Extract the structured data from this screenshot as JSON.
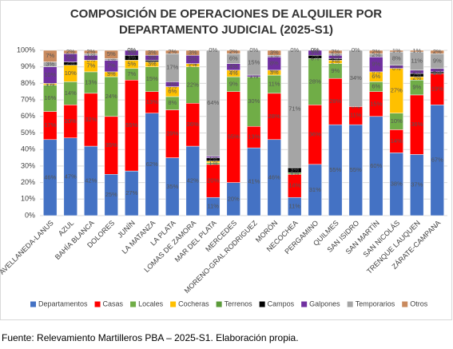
{
  "chart_data": {
    "type": "stacked_bar_percent",
    "title": "COMPOSICIÓN DE OPERACIONES DE ALQUILER POR",
    "subtitle": "DEPARTAMENTO JUDICIAL (2025-S1)",
    "footnote": "Fuente: Relevamiento Martilleros PBA – 2025-S1. Elaboración propia.",
    "categories": [
      "AVELLANEDA-LANUS",
      "AZUL",
      "BAHÍA BLANCA",
      "DOLORES",
      "JUNÍN",
      "LA MATANZA",
      "LA PLATA",
      "LOMAS DE ZAMORA",
      "MAR DEL PLATA",
      "MERCEDES",
      "MORENO-GRAL.RODRIGUEZ",
      "MORÓN",
      "NECOCHEA",
      "PERGAMINO",
      "QUILMES",
      "SAN ISIDRO",
      "SAN MARTÍN",
      "SAN NICOLÁS",
      "TRENQUE LAUQUEN",
      "ZÁRATE-CAMPANA"
    ],
    "series": [
      {
        "name": "Departamentos",
        "color": "#4472c4",
        "values": [
          46,
          47,
          42,
          25,
          27,
          62,
          35,
          42,
          11,
          20,
          41,
          46,
          11,
          31,
          55,
          55,
          60,
          38,
          37,
          67
        ],
        "value_labels": [
          "46%",
          "47%",
          "42%",
          "25%",
          "27%",
          "62%",
          "35%",
          "42%",
          "11%",
          "20%",
          "41%",
          "46%",
          "11%",
          "31%",
          "55%",
          "55%",
          "60%",
          "38%",
          "37%",
          "67%"
        ]
      },
      {
        "name": "Casas",
        "color": "#ff0000",
        "values": [
          17,
          20,
          32,
          35,
          55,
          13,
          29,
          26,
          20,
          55,
          13,
          28,
          14,
          36,
          28,
          11,
          15,
          14,
          36,
          19
        ],
        "value_labels": [
          "17%",
          "20%",
          "32%",
          "35%",
          "55%",
          "13%",
          "29%",
          "26%",
          "20%",
          "55%",
          "13%",
          "28%",
          "14%",
          "36%",
          "28%",
          "11%",
          "15%",
          "14%",
          "36%",
          "19%"
        ]
      },
      {
        "name": "Locales",
        "color": "#70ad47",
        "values": [
          16,
          14,
          13,
          24,
          7,
          15,
          8,
          22,
          1,
          9,
          30,
          11,
          1,
          28,
          9,
          0,
          6,
          10,
          9,
          0
        ],
        "value_labels": [
          "16%",
          "14%",
          "13%",
          "24%",
          "7%",
          "15%",
          "8%",
          "22%",
          "1%",
          "9%",
          "30%",
          "11%",
          "1%",
          "28%",
          "9%",
          "0%",
          "6%",
          "10%",
          "9%",
          "0%"
        ]
      },
      {
        "name": "Cocheras",
        "color": "#ffc000",
        "values": [
          1,
          10,
          7,
          3,
          5,
          3,
          6,
          2,
          1,
          4,
          0,
          3,
          0,
          0,
          2,
          0,
          6,
          27,
          2,
          0
        ],
        "value_labels": [
          "1%",
          "10%",
          "7%",
          "3%",
          "5%",
          "3%",
          "6%",
          "2%",
          "1%",
          "4%",
          "0%",
          "3%",
          "0%",
          "0%",
          "2%",
          "0%",
          "6%",
          "27%",
          "2%",
          "0%"
        ]
      },
      {
        "name": "Terrenos",
        "color": "#5b9b3a",
        "values": [
          0,
          0,
          0,
          0,
          0,
          0,
          0,
          0,
          0,
          0,
          0,
          0,
          0,
          0,
          0,
          0,
          0,
          0,
          0,
          0
        ]
      },
      {
        "name": "Campos",
        "color": "#000000",
        "values": [
          0,
          2,
          0,
          0,
          3,
          1,
          0,
          0,
          2,
          0,
          0,
          0,
          3,
          2,
          1,
          0,
          0,
          0,
          2,
          1
        ],
        "value_labels": [
          "0%",
          "2%",
          "0%",
          "0%",
          "3%",
          "1%",
          "0%",
          "0%",
          "2%",
          "0%",
          "0%",
          "0%",
          "3%",
          "2%",
          "1%",
          "0%",
          "0%",
          "0%",
          "2%",
          "1%"
        ]
      },
      {
        "name": "Galpones",
        "color": "#7030a0",
        "values": [
          10,
          5,
          3,
          7,
          3,
          3,
          3,
          5,
          1,
          4,
          1,
          8,
          0,
          3,
          2,
          0,
          9,
          2,
          2,
          2
        ],
        "value_labels": [
          "10%",
          "5%",
          "3%",
          "7%",
          "3%",
          "3%",
          "3%",
          "5%",
          "1%",
          "4%",
          "1%",
          "8%",
          "0%",
          "3%",
          "2%",
          "0%",
          "9%",
          "2%",
          "2%",
          "2%"
        ]
      },
      {
        "name": "Temporarios",
        "color": "#a5a5a5",
        "values": [
          3,
          0,
          1,
          1,
          0,
          0,
          17,
          0,
          64,
          6,
          15,
          1,
          71,
          0,
          1,
          34,
          2,
          8,
          11,
          9
        ],
        "value_labels": [
          "3%",
          "0%",
          "1%",
          "1%",
          "0%",
          "0%",
          "17%",
          "0%",
          "64%",
          "6%",
          "15%",
          "1%",
          "71%",
          "0%",
          "1%",
          "34%",
          "2%",
          "8%",
          "11%",
          "9%"
        ]
      },
      {
        "name": "Otros",
        "color": "#c98a5e",
        "values": [
          7,
          2,
          2,
          5,
          0,
          3,
          2,
          3,
          0,
          2,
          0,
          3,
          0,
          0,
          2,
          0,
          2,
          1,
          1,
          2
        ],
        "value_labels": [
          "7%",
          "2%",
          "2%",
          "5%",
          "0%",
          "3%",
          "2%",
          "3%",
          "0%",
          "2%",
          "0%",
          "3%",
          "0%",
          "0%",
          "2%",
          "0%",
          "2%",
          "1%",
          "1%",
          "2%"
        ]
      }
    ],
    "ylim": [
      0,
      100
    ],
    "yticks": [
      {
        "value": 0,
        "label": "0%"
      },
      {
        "value": 10,
        "label": "10%"
      },
      {
        "value": 20,
        "label": "20%"
      },
      {
        "value": 30,
        "label": "30%"
      },
      {
        "value": 40,
        "label": "40%"
      },
      {
        "value": 50,
        "label": "50%"
      },
      {
        "value": 60,
        "label": "60%"
      },
      {
        "value": 70,
        "label": "70%"
      },
      {
        "value": 80,
        "label": "80%"
      },
      {
        "value": 90,
        "label": "90%"
      },
      {
        "value": 100,
        "label": "100%"
      }
    ],
    "grid": true,
    "legend": "bottom"
  }
}
